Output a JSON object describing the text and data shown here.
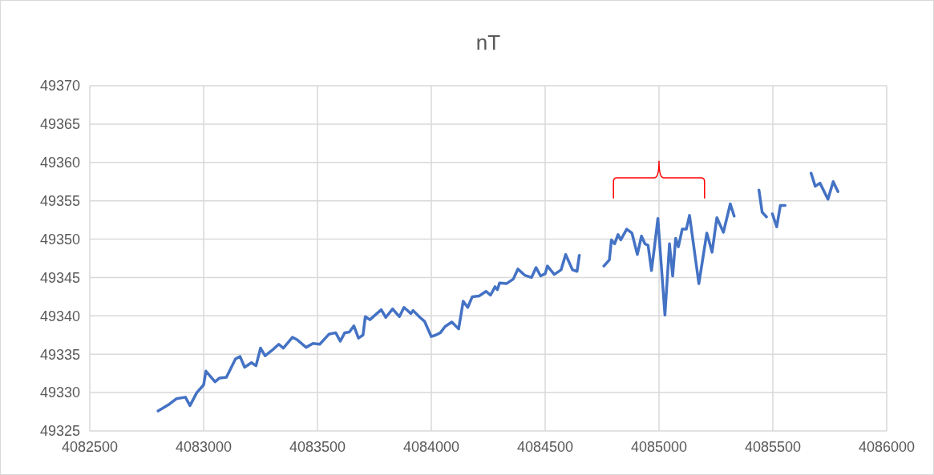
{
  "chart_data": {
    "type": "line",
    "title": "nT",
    "xlim": [
      4082500,
      4086000
    ],
    "xticks": [
      4082500,
      4083000,
      4083500,
      4084000,
      4084500,
      4085000,
      4085500,
      4086000
    ],
    "ylim": [
      49325,
      49370
    ],
    "yticks": [
      49325,
      49330,
      49335,
      49340,
      49345,
      49350,
      49355,
      49360,
      49365,
      49370
    ],
    "grid": true,
    "series": [
      {
        "color": "#4472c4",
        "x": [
          4082800,
          4082850,
          4082880,
          4082920,
          4082940,
          4082970,
          4083000,
          4083010,
          4083050,
          4083070,
          4083100,
          4083140,
          4083160,
          4083180,
          4083210,
          4083230,
          4083250,
          4083270,
          4083300,
          4083330,
          4083350,
          4083390,
          4083410,
          4083450,
          4083480,
          4083510,
          4083550,
          4083580,
          4083600,
          4083620,
          4083640,
          4083660,
          4083680,
          4083700,
          4083710,
          4083730,
          4083780,
          4083800,
          4083830,
          4083860,
          4083880,
          4083910,
          4083920,
          4083950,
          4083970,
          4084000,
          4084020,
          4084040,
          4084060,
          4084090,
          4084120,
          4084140,
          4084160,
          4084180,
          4084210,
          4084240,
          4084260,
          4084280,
          4084290,
          4084300,
          4084330,
          4084360,
          4084380,
          4084410,
          4084440,
          4084460,
          4084480,
          4084500,
          4084510,
          4084540,
          4084570,
          4084590,
          4084620,
          4084640,
          4084650,
          4084700,
          4084758,
          4084782,
          4084791,
          4084805,
          4084820,
          4084832,
          4084858,
          4084881,
          4084905,
          4084923,
          4084938,
          4084952,
          4084967,
          4084981,
          4084995,
          4085026,
          4085046,
          4085060,
          4085073,
          4085085,
          4085102,
          4085120,
          4085134,
          4085175,
          4085210,
          4085233,
          4085254,
          4085283,
          4085313,
          4085330,
          4085380,
          4085439,
          4085453,
          4085472,
          4085485,
          4085498,
          4085517,
          4085533,
          4085554,
          4085610,
          4085668,
          4085686,
          4085707,
          4085742,
          4085765,
          4085786
        ],
        "values": [
          49327.6,
          49328.5,
          49329.2,
          49329.4,
          49328.3,
          49330,
          49331,
          49332.8,
          49331.4,
          49331.9,
          49332,
          49334.4,
          49334.7,
          49333.3,
          49333.9,
          49333.5,
          49335.8,
          49334.8,
          49335.5,
          49336.3,
          49335.8,
          49337.2,
          49336.9,
          49335.9,
          49336.4,
          49336.3,
          49337.6,
          49337.8,
          49336.7,
          49337.8,
          49337.9,
          49338.7,
          49337.1,
          49337.5,
          49339.9,
          49339.5,
          49340.8,
          49339.8,
          49340.9,
          49339.9,
          49341.1,
          49340.3,
          49340.7,
          49339.8,
          49339.3,
          49337.3,
          49337.5,
          49337.8,
          49338.6,
          49339.2,
          49338.3,
          49341.9,
          49341.1,
          49342.5,
          49342.6,
          49343.2,
          49342.7,
          49343.8,
          49343.4,
          49344.3,
          49344.2,
          49344.8,
          49346.1,
          49345.3,
          49345,
          49346.3,
          49345.2,
          49345.5,
          49346.5,
          49345.4,
          49346,
          49348,
          49346,
          49345.8,
          49347.9,
          null,
          49346.5,
          49347.3,
          49349.9,
          49349.4,
          49350.6,
          49349.9,
          49351.3,
          49350.8,
          49348,
          49350.4,
          49349.4,
          49349.2,
          49345.9,
          49349.2,
          49352.7,
          49340.1,
          49349.4,
          49345.2,
          49350.1,
          49349,
          49351.3,
          49351.3,
          49353.1,
          49344.2,
          49350.8,
          49348.3,
          49352.8,
          49350.9,
          49354.6,
          49353,
          null,
          49356.4,
          49353.5,
          49352.9,
          null,
          49353.3,
          49351.6,
          49354.4,
          49354.4,
          null,
          49358.6,
          49356.9,
          49357.3,
          49355.2,
          49357.5,
          49356.2
        ]
      }
    ]
  }
}
